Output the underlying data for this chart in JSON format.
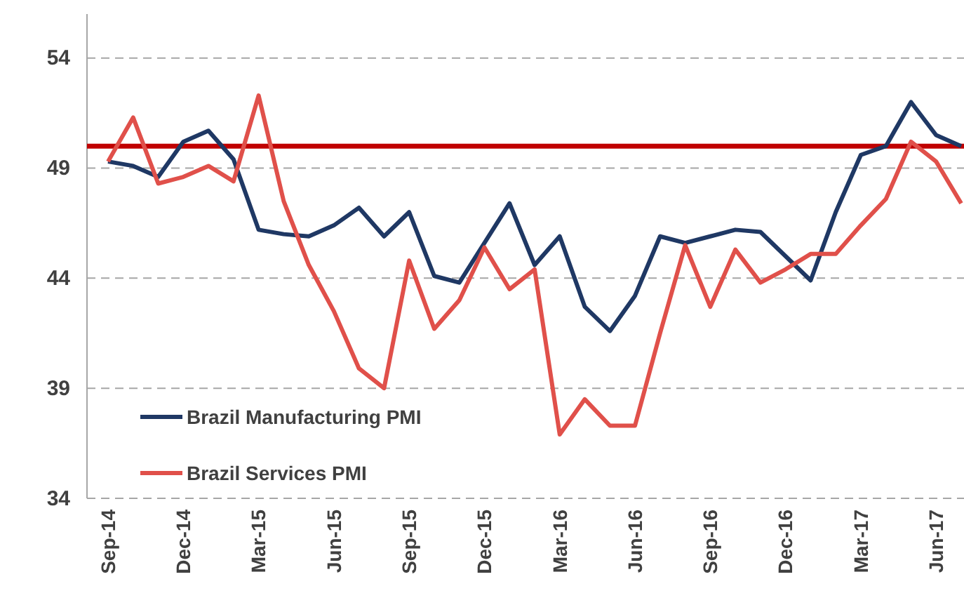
{
  "chart_data": {
    "type": "line",
    "categories": [
      "Sep-14",
      null,
      null,
      "Dec-14",
      null,
      null,
      "Mar-15",
      null,
      null,
      "Jun-15",
      null,
      null,
      "Sep-15",
      null,
      null,
      "Dec-15",
      null,
      null,
      "Mar-16",
      null,
      null,
      "Jun-16",
      null,
      null,
      "Sep-16",
      null,
      null,
      "Dec-16",
      null,
      null,
      "Mar-17",
      null,
      null,
      "Jun-17",
      null
    ],
    "series": [
      {
        "name": "Brazil Manufacturing PMI",
        "color": "#1f3864",
        "values": [
          49.3,
          49.1,
          48.6,
          50.2,
          50.7,
          49.4,
          46.2,
          46.0,
          45.9,
          46.4,
          47.2,
          45.9,
          47.0,
          44.1,
          43.8,
          45.6,
          47.4,
          44.6,
          45.9,
          42.7,
          41.6,
          43.2,
          45.9,
          45.6,
          45.9,
          46.2,
          46.1,
          45.0,
          43.9,
          47.0,
          49.6,
          50.0,
          52.0,
          50.5,
          50.0
        ]
      },
      {
        "name": "Brazil Services PMI",
        "color": "#e0504a",
        "values": [
          49.3,
          51.3,
          48.3,
          48.6,
          49.1,
          48.4,
          52.3,
          47.5,
          44.6,
          42.5,
          39.9,
          39.0,
          44.8,
          41.7,
          43.0,
          45.4,
          43.5,
          44.4,
          36.9,
          38.5,
          37.3,
          37.3,
          41.5,
          45.5,
          42.7,
          45.3,
          43.8,
          44.4,
          45.1,
          45.1,
          46.4,
          47.6,
          50.2,
          49.3,
          47.4
        ]
      }
    ],
    "ylim": [
      34,
      56
    ],
    "yticks": [
      34,
      39,
      44,
      49,
      54
    ],
    "grid": "y",
    "legend": "bottom left",
    "line_style": "solid",
    "marker": "none",
    "ref_lines": [
      {
        "axis": "y",
        "value": 50,
        "color": "#c00000"
      }
    ]
  }
}
